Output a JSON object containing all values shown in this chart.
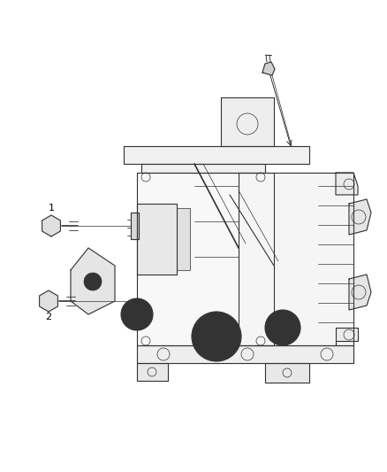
{
  "background_color": "#ffffff",
  "line_color": "#333333",
  "light_gray": "#cccccc",
  "mid_gray": "#999999",
  "label_1": "1",
  "label_2": "2",
  "figsize": [
    4.38,
    5.33
  ],
  "dpi": 100
}
